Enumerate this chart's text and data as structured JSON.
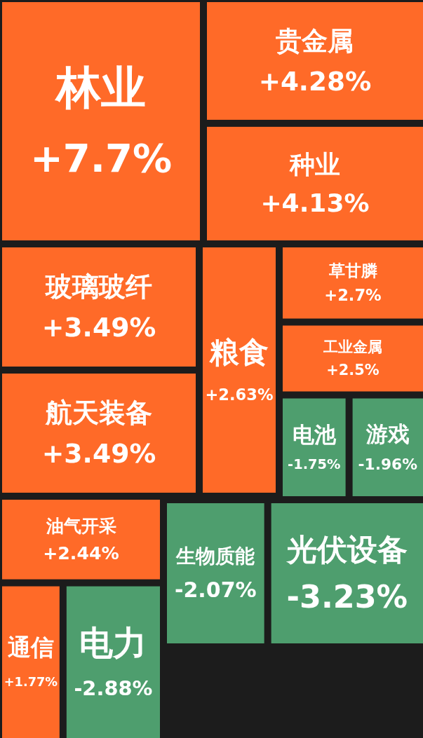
{
  "chart_data": {
    "type": "other",
    "categories": [
      "林业",
      "贵金属",
      "种业",
      "玻璃玻纤",
      "航天装备",
      "粮食",
      "草甘膦",
      "工业金属",
      "电池",
      "游戏",
      "油气开采",
      "生物质能",
      "光伏设备",
      "通信",
      "电力"
    ],
    "values": [
      7.7,
      4.28,
      4.13,
      3.49,
      3.49,
      2.63,
      2.7,
      2.5,
      -1.75,
      -1.96,
      2.44,
      -2.07,
      -3.23,
      1.77,
      -2.88
    ],
    "value_labels": [
      "+7.7%",
      "+4.28%",
      "+4.13%",
      "+3.49%",
      "+3.49%",
      "+2.63%",
      "+2.7%",
      "+2.5%",
      "-1.75%",
      "-1.96%",
      "+2.44%",
      "-2.07%",
      "-3.23%",
      "+1.77%",
      "-2.88%"
    ],
    "colors": [
      "#ff6a28",
      "#ff6a28",
      "#ff6a28",
      "#ff6a28",
      "#ff6a28",
      "#ff6a28",
      "#ff6a28",
      "#ff6a28",
      "#4e9e6e",
      "#4e9e6e",
      "#ff6a28",
      "#4e9e6e",
      "#4e9e6e",
      "#ff6a28",
      "#4e9e6e"
    ]
  }
}
